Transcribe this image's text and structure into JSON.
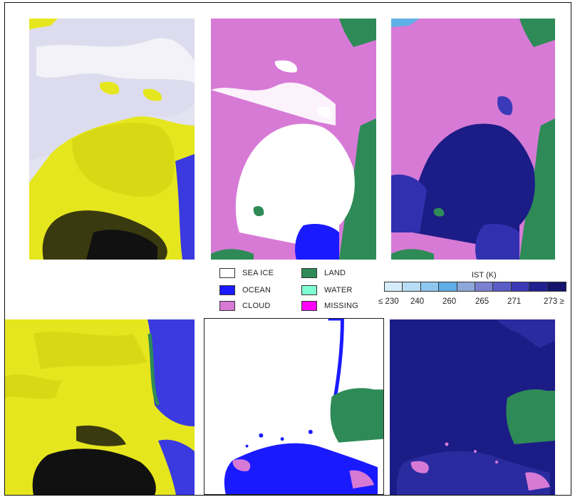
{
  "legend": {
    "items": [
      {
        "label": "SEA ICE",
        "color": "#ffffff"
      },
      {
        "label": "OCEAN",
        "color": "#1a1aff"
      },
      {
        "label": "CLOUD",
        "color": "#d77ad6"
      },
      {
        "label": "LAND",
        "color": "#2e8b57"
      },
      {
        "label": "WATER",
        "color": "#7fffd4"
      },
      {
        "label": "MISSING",
        "color": "#ff00ff"
      }
    ]
  },
  "ist_scale": {
    "title": "IST (K)",
    "colors": [
      "#d6ecfa",
      "#b7dcf3",
      "#8fc8ef",
      "#5faee6",
      "#8da8d8",
      "#7b7fd0",
      "#5b5dc6",
      "#3a3ab8",
      "#202090",
      "#14146e"
    ],
    "ticks": [
      "≤ 230",
      "240",
      "260",
      "265",
      "271",
      "273 ≥"
    ]
  },
  "colors": {
    "seaice": "#ffffff",
    "ocean": "#1a1aff",
    "cloud": "#d77ad6",
    "land": "#2e8b57",
    "ist_dark": "#1c1c86",
    "ist_mid": "#3131b0",
    "false_yellow": "#e6e61e",
    "false_blue": "#3a3ae0"
  }
}
